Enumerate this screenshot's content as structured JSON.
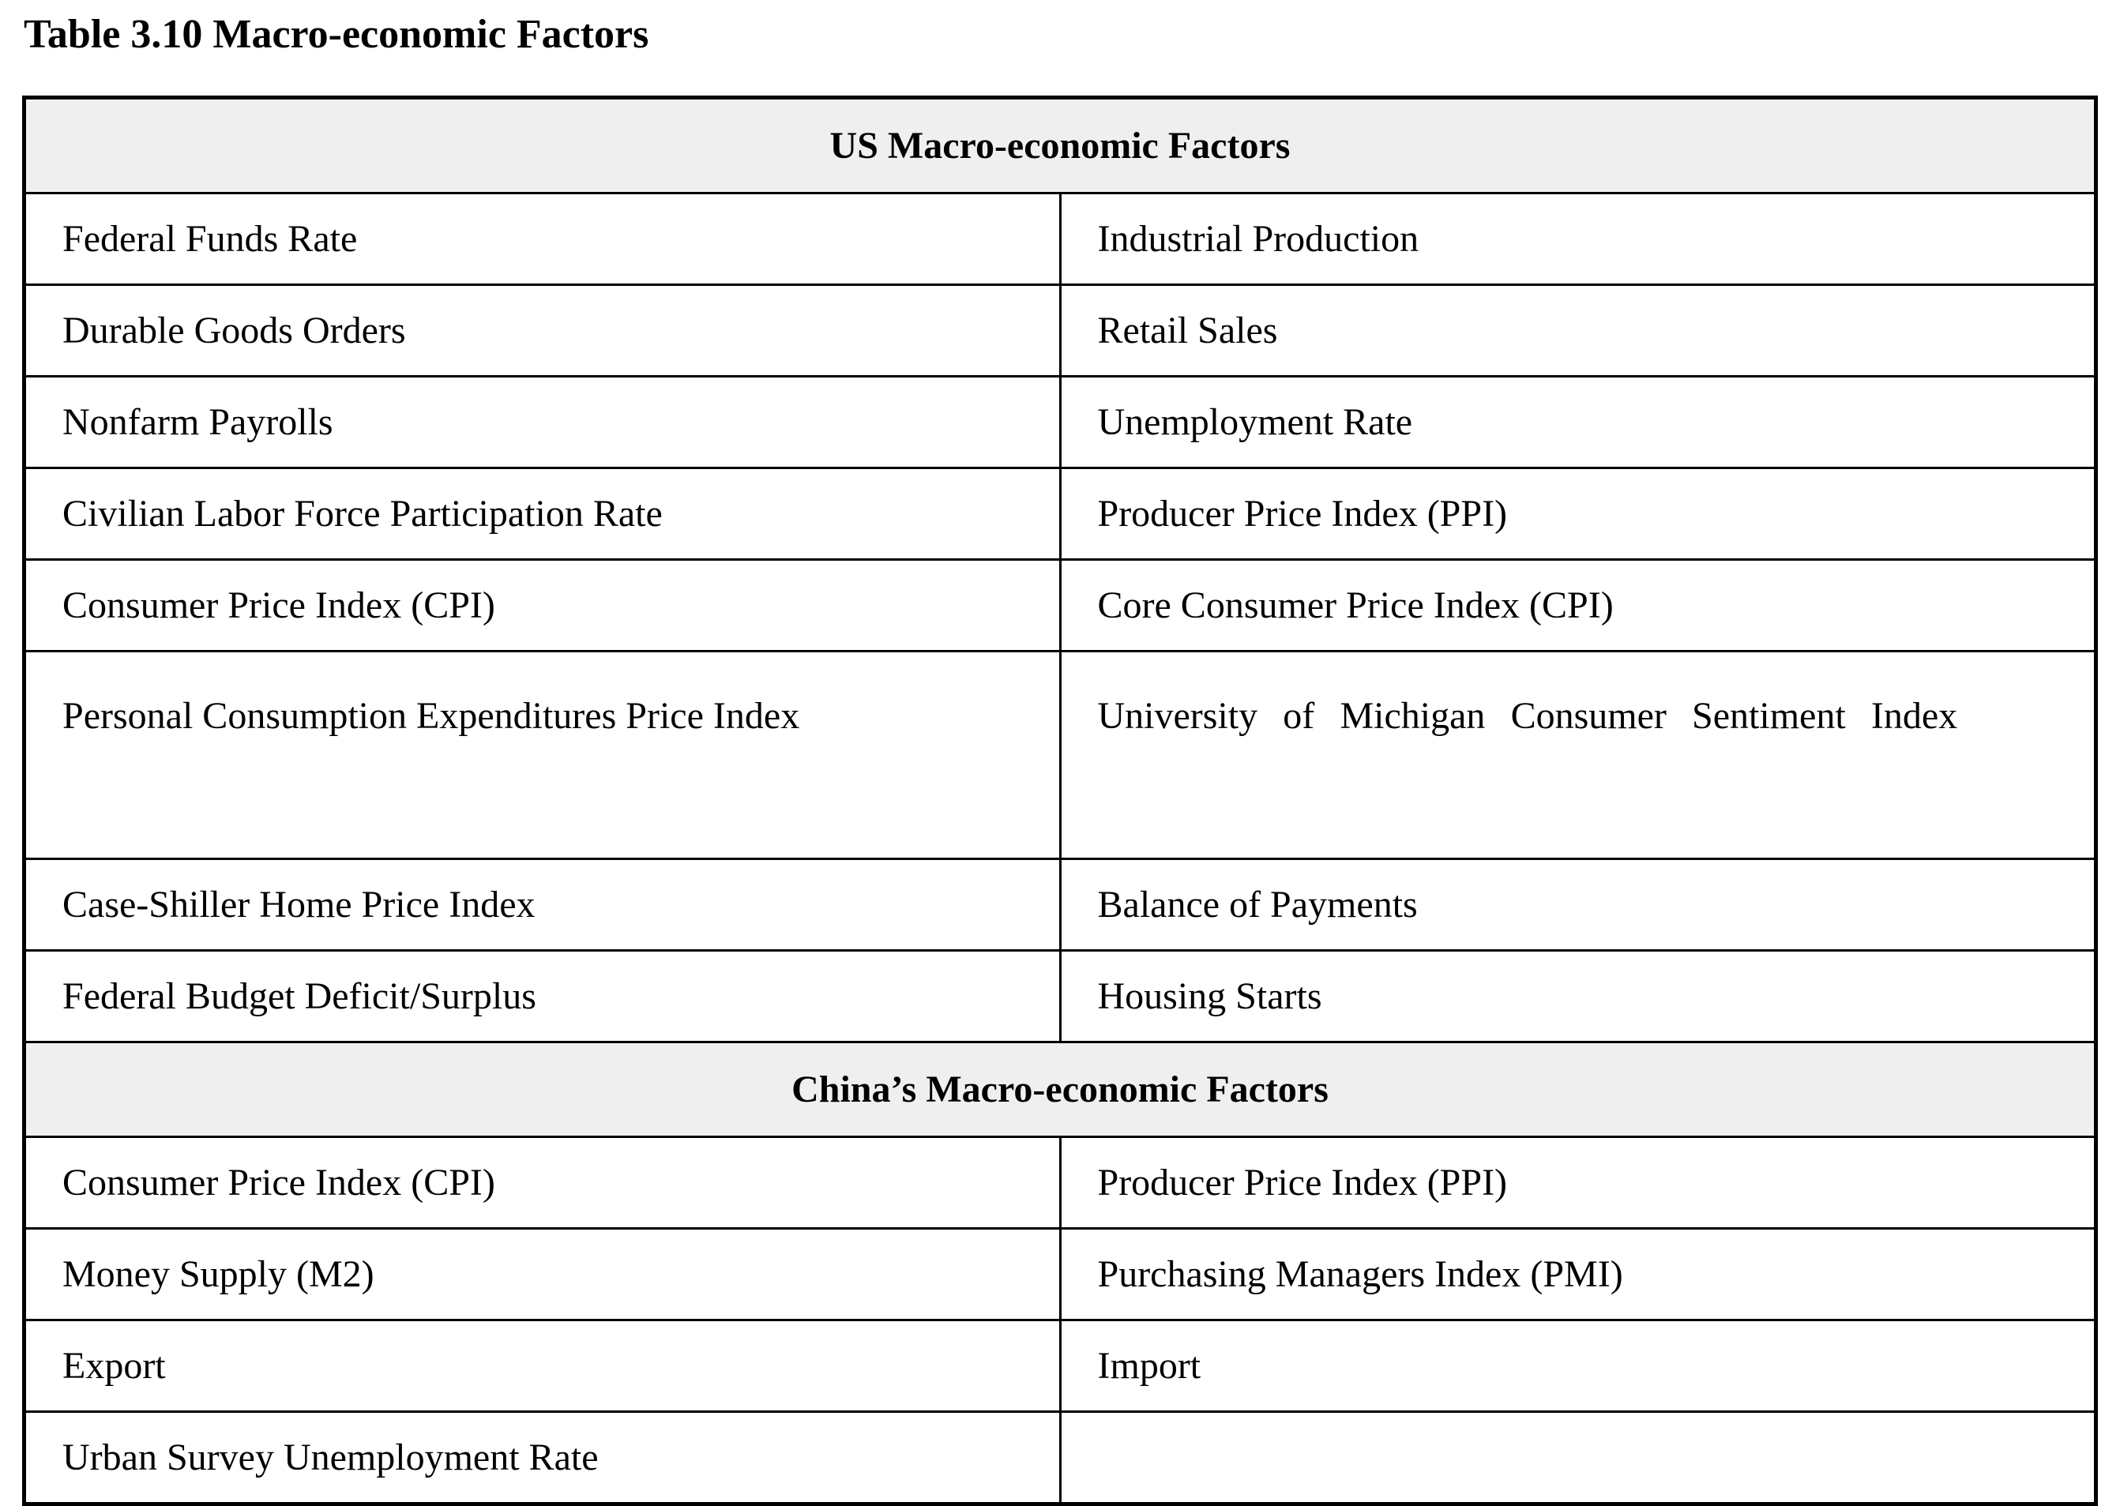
{
  "title": "Table 3.10 Macro-economic Factors",
  "table": {
    "sections": [
      {
        "header": "US Macro-economic Factors",
        "rows": [
          [
            "Federal Funds Rate",
            "Industrial Production"
          ],
          [
            "Durable Goods Orders",
            "Retail Sales"
          ],
          [
            "Nonfarm Payrolls",
            "Unemployment Rate"
          ],
          [
            "Civilian Labor Force Participation Rate",
            "Producer Price Index (PPI)"
          ],
          [
            "Consumer Price Index (CPI)",
            "Core Consumer Price Index (CPI)"
          ],
          [
            "Personal Consumption Expenditures Price Index",
            "University of Michigan Consumer Sentiment Index"
          ],
          [
            "Case-Shiller Home Price Index",
            "Balance of Payments"
          ],
          [
            "Federal Budget Deficit/Surplus",
            "Housing Starts"
          ]
        ]
      },
      {
        "header": "China’s Macro-economic Factors",
        "rows": [
          [
            "Consumer Price Index (CPI)",
            "Producer Price Index (PPI)"
          ],
          [
            "Money Supply (M2)",
            "Purchasing Managers Index (PMI)"
          ],
          [
            "Export",
            "Import"
          ],
          [
            "Urban Survey Unemployment Rate",
            ""
          ]
        ]
      }
    ]
  },
  "colors": {
    "background": "#ffffff",
    "text": "#000000",
    "border": "#000000",
    "section_header_bg": "#efefef"
  }
}
